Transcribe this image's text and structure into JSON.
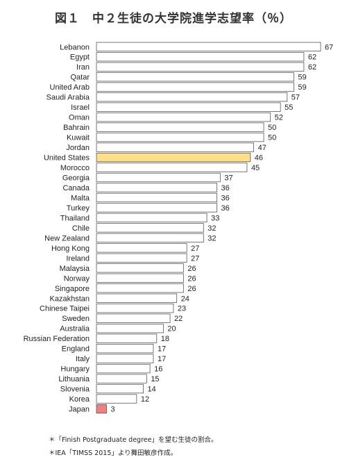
{
  "chart_data": {
    "type": "bar",
    "orientation": "horizontal",
    "title": "図１　中２生徒の大学院進学志望率（％）",
    "categories": [
      "Lebanon",
      "Egypt",
      "Iran",
      "Qatar",
      "United Arab",
      "Saudi Arabia",
      "Israel",
      "Oman",
      "Bahrain",
      "Kuwait",
      "Jordan",
      "United States",
      "Morocco",
      "Georgia",
      "Canada",
      "Malta",
      "Turkey",
      "Thailand",
      "Chile",
      "New Zealand",
      "Hong Kong",
      "Ireland",
      "Malaysia",
      "Norway",
      "Singapore",
      "Kazakhstan",
      "Chinese Taipei",
      "Sweden",
      "Australia",
      "Russian Federation",
      "England",
      "Italy",
      "Hungary",
      "Lithuania",
      "Slovenia",
      "Korea",
      "Japan"
    ],
    "values": [
      67,
      62,
      62,
      59,
      59,
      57,
      55,
      52,
      50,
      50,
      47,
      46,
      45,
      37,
      36,
      36,
      36,
      33,
      32,
      32,
      27,
      27,
      26,
      26,
      26,
      24,
      23,
      22,
      20,
      18,
      17,
      17,
      16,
      15,
      14,
      12,
      3
    ],
    "xlim": [
      0,
      70
    ],
    "grid": false,
    "colors": {
      "default": "#ffffff",
      "highlight_us": "#ffe08a",
      "highlight_japan": "#f08080",
      "outline": "#555555"
    },
    "highlights": {
      "United States": "highlight_us",
      "Japan": "highlight_japan"
    }
  },
  "notes": [
    "＊「Finish Postgraduate degree」を望む生徒の割合。",
    "＊IEA「TIMSS 2015」より舞田敏彦作成。"
  ]
}
